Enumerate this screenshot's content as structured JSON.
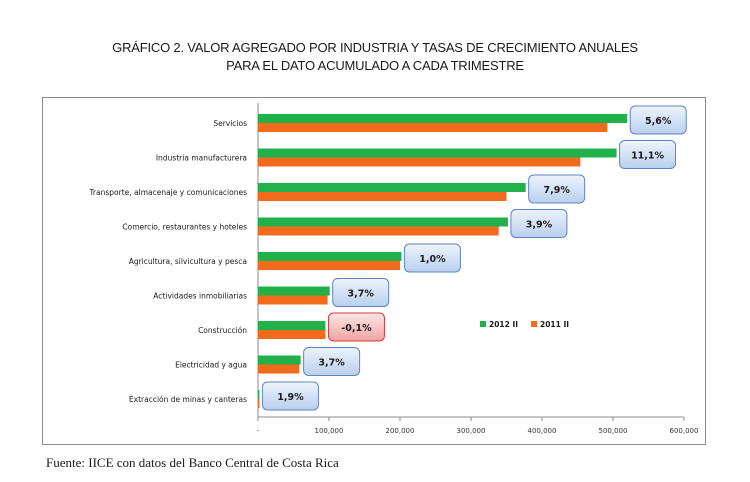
{
  "chart_data": {
    "type": "bar",
    "orientation": "horizontal",
    "title": "GRÁFICO 2. VALOR AGREGADO POR INDUSTRIA Y TASAS DE CRECIMIENTO ANUALES",
    "subtitle": "PARA EL DATO ACUMULADO A CADA TRIMESTRE",
    "categories": [
      "Servicios",
      "Industria manufacturera",
      "Transporte, almacenaje y comunicaciones",
      "Comercio, restaurantes y hoteles",
      "Agricultura, silvicultura y pesca",
      "Actividades inmobiliarias",
      "Construcción",
      "Electricidad y agua",
      "Extracción de minas y canteras"
    ],
    "series": [
      {
        "name": "2012 II",
        "color": "#22b04b",
        "values": [
          520000,
          505000,
          377000,
          352000,
          202000,
          101000,
          95000,
          60000,
          2000
        ]
      },
      {
        "name": "2011 II",
        "color": "#f26b1d",
        "values": [
          492000,
          454000,
          350000,
          339000,
          200000,
          98000,
          95000,
          58000,
          2000
        ]
      }
    ],
    "growth_labels": [
      "5,6%",
      "11,1%",
      "7,9%",
      "3,9%",
      "1,0%",
      "3,7%",
      "-0,1%",
      "3,7%",
      "1,9%"
    ],
    "growth_negative": [
      false,
      false,
      false,
      false,
      false,
      false,
      true,
      false,
      false
    ],
    "x_ticks": [
      0,
      100000,
      200000,
      300000,
      400000,
      500000,
      600000
    ],
    "x_tick_labels": [
      "-",
      "100,000",
      "200,000",
      "300,000",
      "400,000",
      "500,000",
      "600,000"
    ],
    "xlim": [
      0,
      600000
    ],
    "grid": false,
    "legend_position": "right-middle",
    "xlabel": "",
    "ylabel": ""
  },
  "source": "Fuente: IICE con datos del Banco Central de Costa Rica"
}
